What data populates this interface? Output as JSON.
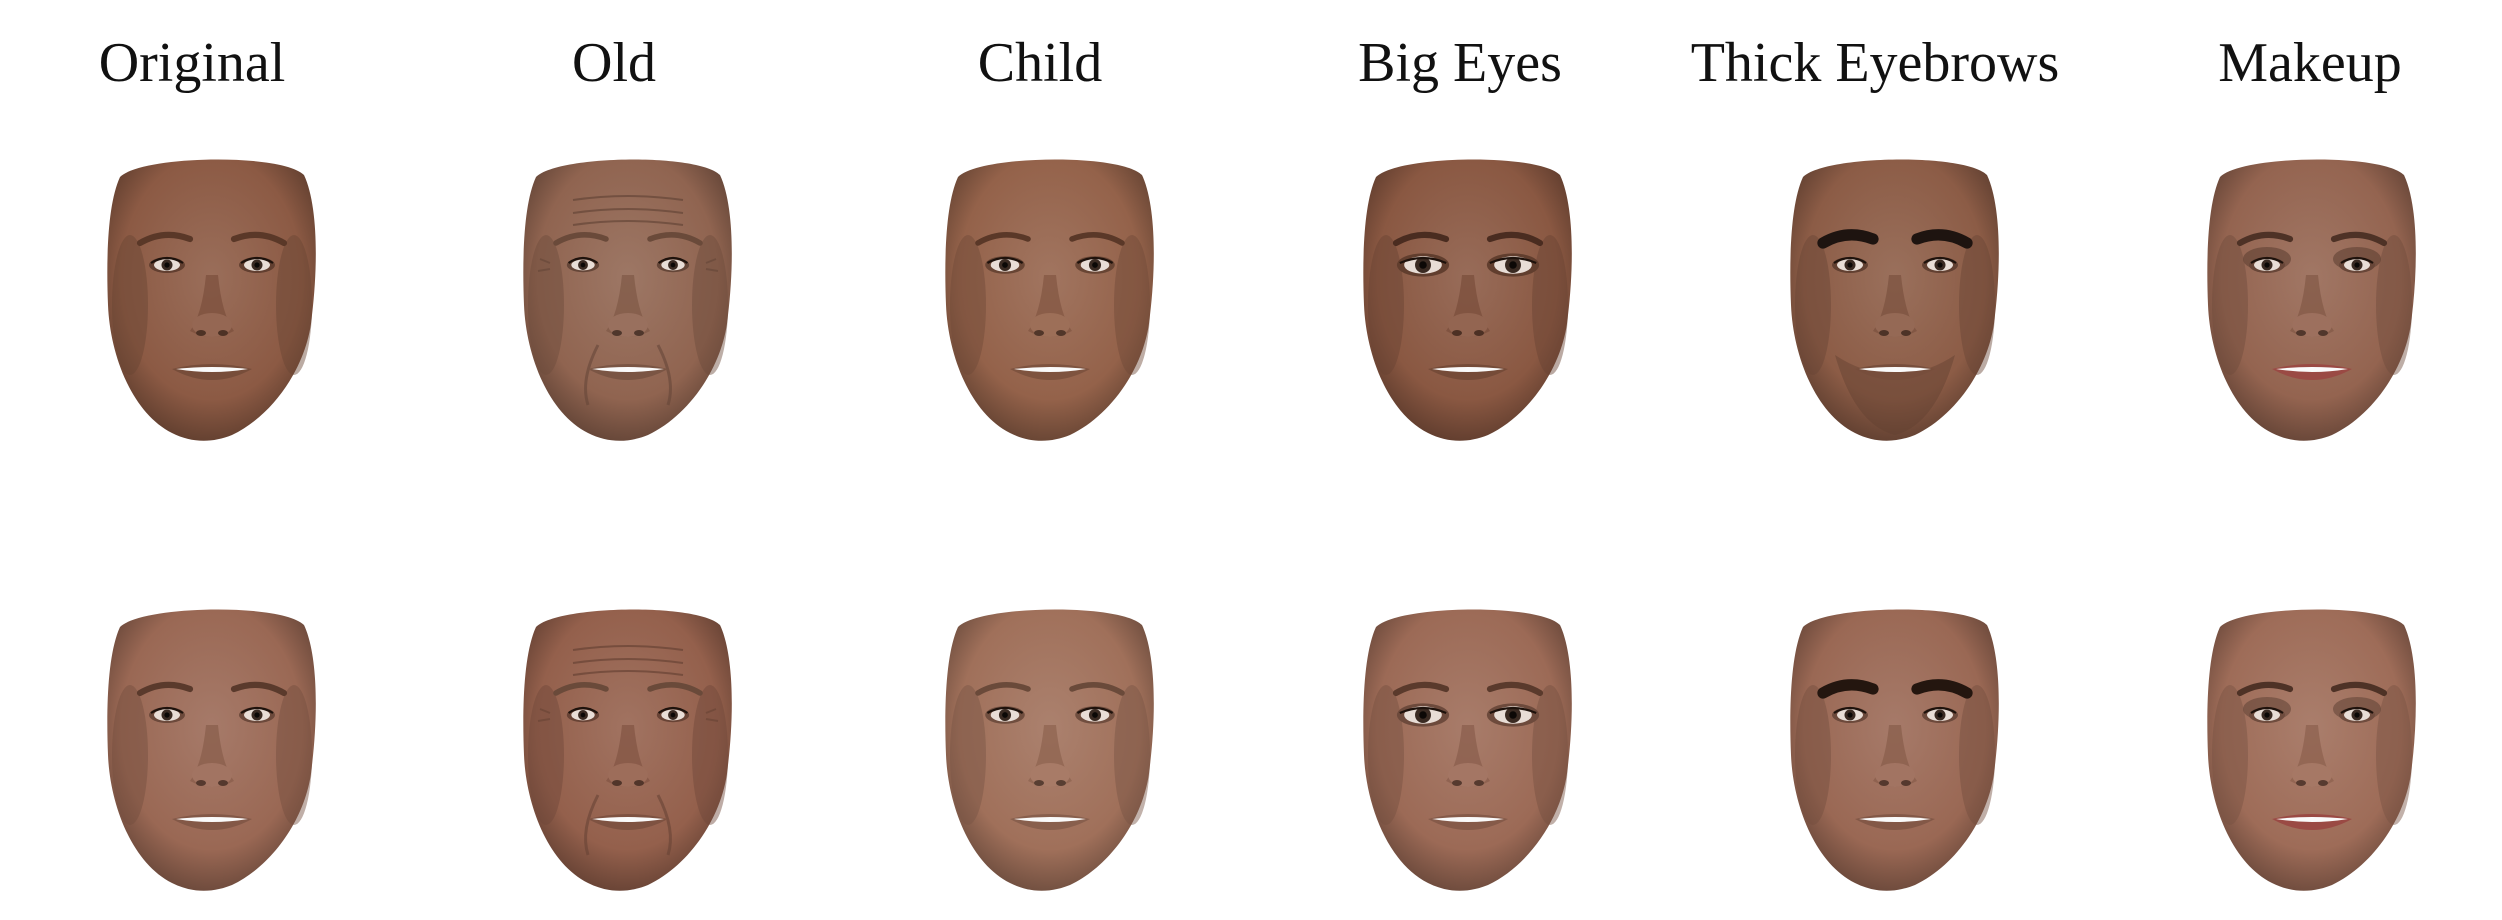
{
  "columns": [
    {
      "key": "original",
      "label": "Original"
    },
    {
      "key": "old",
      "label": "Old"
    },
    {
      "key": "child",
      "label": "Child"
    },
    {
      "key": "big-eyes",
      "label": "Big Eyes"
    },
    {
      "key": "thick-eyebrows",
      "label": "Thick Eyebrows"
    },
    {
      "key": "makeup",
      "label": "Makeup"
    }
  ],
  "rows": [
    {
      "key": "male",
      "cells": [
        {
          "skin": "#8c5a44",
          "brow": "#5a3828",
          "brow_weight": 1,
          "eye_scale": 1,
          "aging": 0,
          "makeup": 0,
          "beard": 0
        },
        {
          "skin": "#906450",
          "brow": "#6a4a3a",
          "brow_weight": 0.8,
          "eye_scale": 0.9,
          "aging": 1,
          "makeup": 0,
          "beard": 0
        },
        {
          "skin": "#94624a",
          "brow": "#5a3828",
          "brow_weight": 0.8,
          "eye_scale": 1.1,
          "aging": 0,
          "makeup": 0,
          "beard": 0
        },
        {
          "skin": "#8a5842",
          "brow": "#4a2c20",
          "brow_weight": 1,
          "eye_scale": 1.45,
          "aging": 0,
          "makeup": 0,
          "beard": 0
        },
        {
          "skin": "#8c5c46",
          "brow": "#1e1410",
          "brow_weight": 2.6,
          "eye_scale": 1,
          "aging": 0,
          "makeup": 0,
          "beard": 1
        },
        {
          "skin": "#946450",
          "brow": "#4e3226",
          "brow_weight": 1,
          "eye_scale": 1,
          "aging": 0,
          "makeup": 1,
          "beard": 0
        }
      ]
    },
    {
      "key": "female",
      "cells": [
        {
          "skin": "#9a6854",
          "brow": "#5a3a2c",
          "brow_weight": 1,
          "eye_scale": 1,
          "aging": 0,
          "makeup": 0,
          "beard": 0
        },
        {
          "skin": "#94604c",
          "brow": "#6a4a3a",
          "brow_weight": 0.8,
          "eye_scale": 0.9,
          "aging": 1,
          "makeup": 0,
          "beard": 0
        },
        {
          "skin": "#a0705a",
          "brow": "#6a4a3a",
          "brow_weight": 0.8,
          "eye_scale": 1.1,
          "aging": 0,
          "makeup": 0,
          "beard": 0
        },
        {
          "skin": "#9c6a56",
          "brow": "#5a3a2c",
          "brow_weight": 1,
          "eye_scale": 1.45,
          "aging": 0,
          "makeup": 0,
          "beard": 0
        },
        {
          "skin": "#9a6854",
          "brow": "#24160f",
          "brow_weight": 2.6,
          "eye_scale": 1,
          "aging": 0,
          "makeup": 0,
          "beard": 0
        },
        {
          "skin": "#9e6c58",
          "brow": "#4e3226",
          "brow_weight": 1,
          "eye_scale": 1,
          "aging": 0,
          "makeup": 1,
          "beard": 0
        }
      ]
    }
  ]
}
